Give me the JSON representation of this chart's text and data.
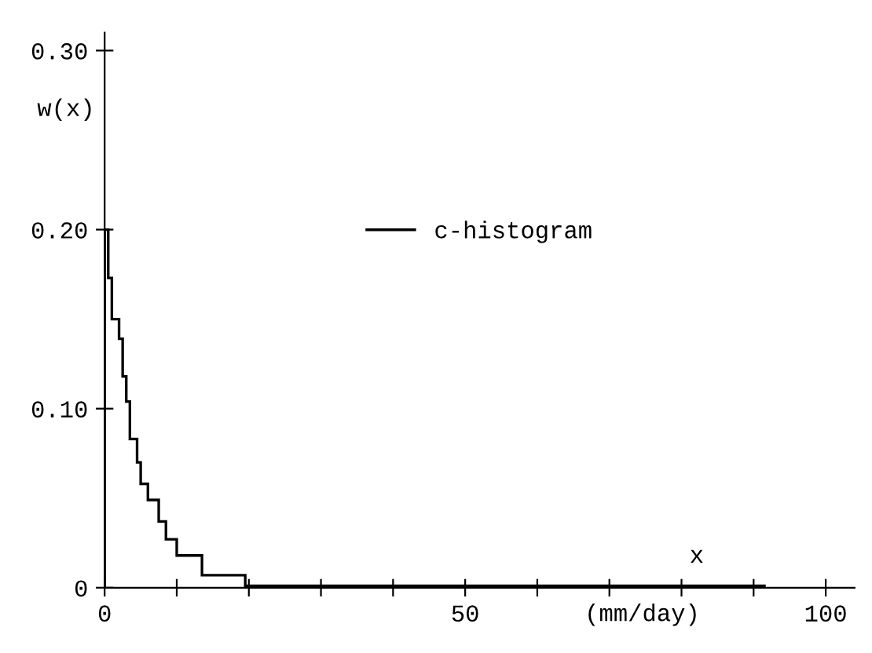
{
  "chart_data": {
    "type": "histogram",
    "xlabel": "x",
    "ylabel": "w(x)",
    "annotations": [
      "(mm/day)"
    ],
    "bins": [
      0,
      0.5,
      1,
      2,
      2.5,
      3,
      3.5,
      4.5,
      5,
      6,
      7.5,
      8.5,
      10,
      13.5,
      19.5,
      91.5
    ],
    "series": [
      {
        "name": "c-histogram",
        "color": "#000000",
        "values": [
          0.2,
          0.173,
          0.15,
          0.139,
          0.118,
          0.104,
          0.083,
          0.07,
          0.058,
          0.049,
          0.037,
          0.027,
          0.018,
          0.007,
          0.001
        ]
      }
    ],
    "xlim": [
      0,
      104
    ],
    "ylim": [
      0,
      0.31
    ],
    "xticks": [
      0,
      {
        "value": 10,
        "label": null
      },
      {
        "value": 20,
        "label": null
      },
      {
        "value": 30,
        "label": null
      },
      {
        "value": 40,
        "label": null
      },
      50,
      {
        "value": 60,
        "label": null
      },
      {
        "value": 70,
        "label": null
      },
      {
        "value": 80,
        "label": null
      },
      {
        "value": 90,
        "label": null
      },
      100
    ],
    "yticks": [
      {
        "value": 0,
        "label": "0"
      },
      {
        "value": 0.1,
        "label": "0.10"
      },
      {
        "value": 0.2,
        "label": "0.20"
      },
      {
        "value": 0.3,
        "label": "0.30"
      }
    ],
    "grid": false,
    "legend": "top"
  }
}
